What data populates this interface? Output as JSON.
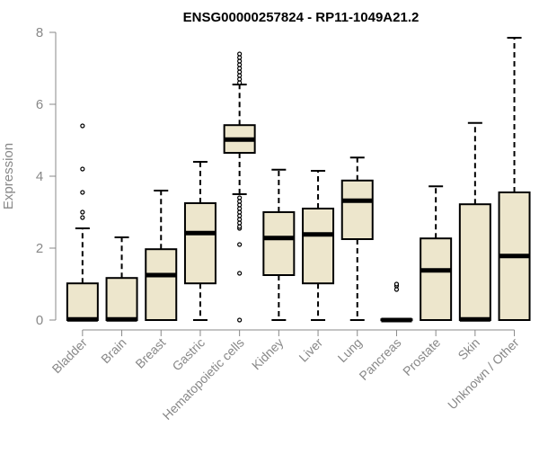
{
  "chart_data": {
    "type": "boxplot",
    "title": "ENSG00000257824 - RP11-1049A21.2",
    "xlabel": "",
    "ylabel": "Expression",
    "ylim": [
      0,
      8
    ],
    "yticks": [
      0,
      2,
      4,
      6,
      8
    ],
    "grid": false,
    "colors": {
      "box_fill": "#ede6cc",
      "stroke": "#000000",
      "axis": "#888888"
    },
    "categories": [
      "Bladder",
      "Brain",
      "Breast",
      "Gastric",
      "Hematopoietic cells",
      "Kidney",
      "Liver",
      "Lung",
      "Pancreas",
      "Prostate",
      "Skin",
      "Unknown / Other"
    ],
    "boxes": [
      {
        "q1": 0.0,
        "median": 0.02,
        "q3": 1.02,
        "whisker_low": 0.0,
        "whisker_high": 2.55,
        "outliers": [
          2.85,
          3.0,
          3.55,
          4.2,
          5.4
        ]
      },
      {
        "q1": 0.0,
        "median": 0.02,
        "q3": 1.17,
        "whisker_low": 0.0,
        "whisker_high": 2.3,
        "outliers": []
      },
      {
        "q1": 0.0,
        "median": 1.25,
        "q3": 1.97,
        "whisker_low": 0.0,
        "whisker_high": 3.6,
        "outliers": []
      },
      {
        "q1": 1.02,
        "median": 2.42,
        "q3": 3.25,
        "whisker_low": 0.0,
        "whisker_high": 4.4,
        "outliers": []
      },
      {
        "q1": 4.65,
        "median": 5.02,
        "q3": 5.42,
        "whisker_low": 3.5,
        "whisker_high": 6.55,
        "outliers": [
          0.0,
          1.3,
          2.1,
          2.55,
          2.6,
          2.7,
          2.8,
          2.9,
          3.0,
          3.1,
          3.2,
          3.3,
          3.4,
          6.6,
          6.7,
          6.8,
          6.9,
          7.0,
          7.1,
          7.2,
          7.3,
          7.4
        ]
      },
      {
        "q1": 1.25,
        "median": 2.28,
        "q3": 3.0,
        "whisker_low": 0.0,
        "whisker_high": 4.18,
        "outliers": []
      },
      {
        "q1": 1.02,
        "median": 2.38,
        "q3": 3.1,
        "whisker_low": 0.0,
        "whisker_high": 4.15,
        "outliers": []
      },
      {
        "q1": 2.25,
        "median": 3.32,
        "q3": 3.88,
        "whisker_low": 0.0,
        "whisker_high": 4.52,
        "outliers": []
      },
      {
        "q1": 0.0,
        "median": 0.0,
        "q3": 0.02,
        "whisker_low": 0.0,
        "whisker_high": 0.02,
        "outliers": [
          0.85,
          0.95,
          1.0
        ]
      },
      {
        "q1": 0.0,
        "median": 1.38,
        "q3": 2.27,
        "whisker_low": 0.0,
        "whisker_high": 3.72,
        "outliers": []
      },
      {
        "q1": 0.0,
        "median": 0.02,
        "q3": 3.22,
        "whisker_low": 0.0,
        "whisker_high": 5.48,
        "outliers": []
      },
      {
        "q1": 0.0,
        "median": 1.78,
        "q3": 3.55,
        "whisker_low": 0.0,
        "whisker_high": 7.85,
        "outliers": []
      }
    ]
  }
}
